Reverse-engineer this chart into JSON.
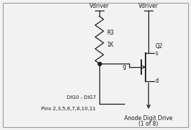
{
  "bg_color": "#f2f2f2",
  "fg_color": "#1a1a1a",
  "border_color": "#999999",
  "resistor_label": "R3",
  "resistor_value": "1K",
  "mosfet_label": "Q2",
  "dig_label1": "DIG0 - DIG7",
  "dig_label2": "Pins 2,3,5,6,7,8,10,11",
  "anode_label1": "Anode Digit Drive",
  "anode_label2": "(1 of 8)",
  "vdriver_label": "Vdriver",
  "font_size": 5.5,
  "lw": 0.9
}
